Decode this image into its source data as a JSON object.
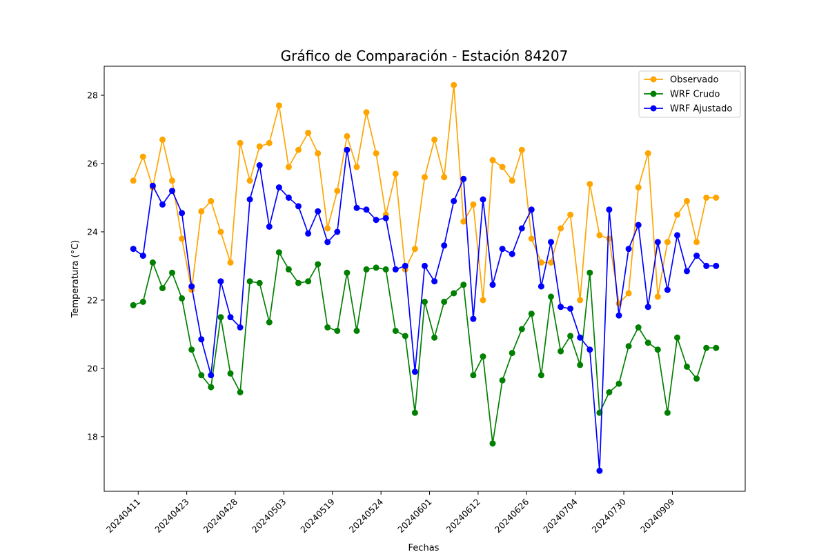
{
  "chart_data": {
    "type": "line",
    "title": "Gráfico de Comparación - Estación 84207",
    "xlabel": "Fechas",
    "ylabel": "Temperatura (°C)",
    "x_tick_labels": [
      "20240411",
      "20240423",
      "20240428",
      "20240503",
      "20240519",
      "20240524",
      "20240601",
      "20240612",
      "20240626",
      "20240704",
      "20240730",
      "20240909"
    ],
    "x_tick_positions": [
      0.5,
      5.5,
      10.5,
      15.5,
      20.5,
      25.5,
      30.5,
      35.5,
      40.5,
      45.5,
      50.5,
      55.5
    ],
    "ylim": [
      16.4,
      28.85
    ],
    "yticks": [
      18,
      20,
      22,
      24,
      26,
      28
    ],
    "grid": false,
    "legend": "top-right",
    "x": [
      0,
      1,
      2,
      3,
      4,
      5,
      6,
      7,
      8,
      9,
      10,
      11,
      12,
      13,
      14,
      15,
      16,
      17,
      18,
      19,
      20,
      21,
      22,
      23,
      24,
      25,
      26,
      27,
      28,
      29,
      30,
      31,
      32,
      33,
      34,
      35,
      36,
      37,
      38,
      39,
      40,
      41,
      42,
      43,
      44,
      45,
      46,
      47,
      48,
      49,
      50,
      51,
      52,
      53,
      54,
      55,
      56,
      57,
      58,
      59,
      60
    ],
    "series": [
      {
        "name": "Observado",
        "color": "#FFA500",
        "values": [
          25.5,
          26.2,
          25.3,
          26.7,
          25.5,
          23.8,
          22.3,
          24.6,
          24.9,
          24.0,
          23.1,
          26.6,
          25.5,
          26.5,
          26.6,
          27.7,
          25.9,
          26.4,
          26.9,
          26.3,
          24.1,
          25.2,
          26.8,
          25.9,
          27.5,
          26.3,
          24.5,
          25.7,
          22.9,
          23.5,
          25.6,
          26.7,
          25.6,
          28.3,
          24.3,
          24.8,
          22.0,
          26.1,
          25.9,
          25.5,
          26.4,
          23.8,
          23.1,
          23.1,
          24.1,
          24.5,
          22.0,
          25.4,
          23.9,
          23.8,
          21.9,
          22.2,
          25.3,
          26.3,
          22.1,
          23.7,
          24.5,
          24.9,
          23.7,
          25.0,
          25.0
        ]
      },
      {
        "name": "WRF Crudo",
        "color": "#008000",
        "values": [
          21.85,
          21.95,
          23.1,
          22.35,
          22.8,
          22.05,
          20.55,
          19.8,
          19.45,
          21.5,
          19.85,
          19.3,
          22.55,
          22.5,
          21.35,
          23.4,
          22.9,
          22.5,
          22.55,
          23.05,
          21.2,
          21.1,
          22.8,
          21.1,
          22.9,
          22.95,
          22.9,
          21.1,
          20.95,
          18.7,
          21.95,
          20.9,
          21.95,
          22.2,
          22.45,
          19.8,
          20.35,
          17.8,
          19.65,
          20.45,
          21.15,
          21.6,
          19.8,
          22.1,
          20.5,
          20.95,
          20.1,
          22.8,
          18.7,
          19.3,
          19.55,
          20.65,
          21.2,
          20.75,
          20.55,
          18.7,
          20.9,
          20.05,
          19.7,
          20.6,
          20.6
        ]
      },
      {
        "name": "WRF Ajustado",
        "color": "#0000FF",
        "values": [
          23.5,
          23.3,
          25.35,
          24.8,
          25.2,
          24.55,
          22.4,
          20.85,
          19.8,
          22.55,
          21.5,
          21.2,
          24.95,
          25.95,
          24.15,
          25.3,
          25.0,
          24.75,
          23.95,
          24.6,
          23.7,
          24.0,
          26.4,
          24.7,
          24.65,
          24.35,
          24.4,
          22.9,
          23.0,
          19.9,
          23.0,
          22.55,
          23.6,
          24.9,
          25.55,
          21.45,
          24.95,
          22.45,
          23.5,
          23.35,
          24.1,
          24.65,
          22.4,
          23.7,
          21.8,
          21.75,
          20.9,
          20.55,
          17.0,
          24.65,
          21.55,
          23.5,
          24.2,
          21.8,
          23.7,
          22.3,
          23.9,
          22.85,
          23.3,
          23.0,
          23.0
        ]
      }
    ]
  }
}
